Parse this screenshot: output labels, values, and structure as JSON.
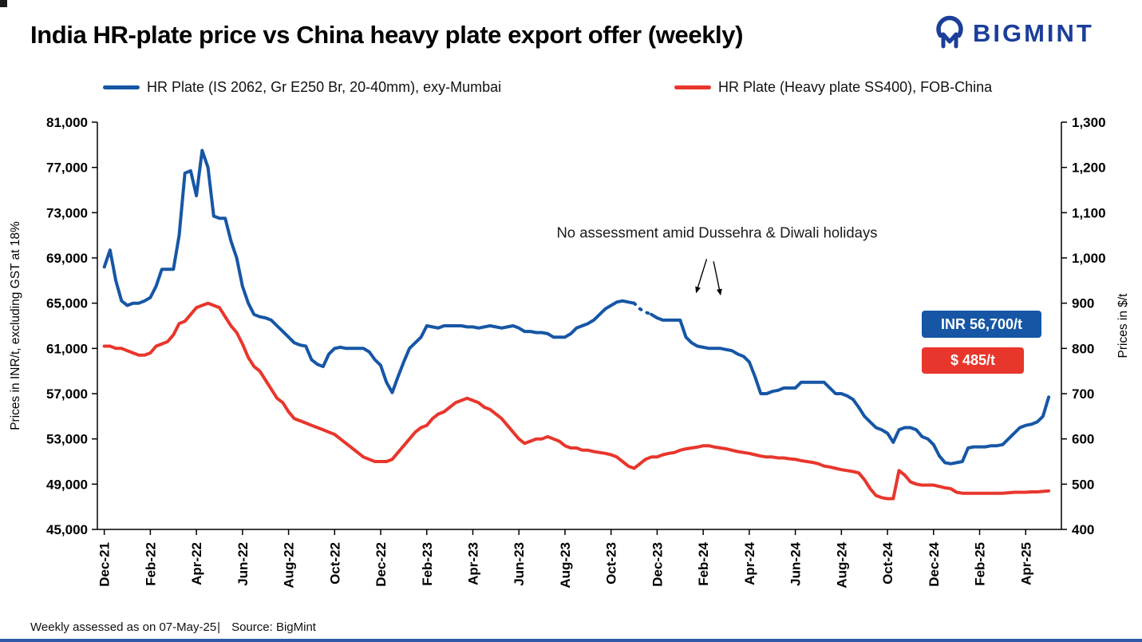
{
  "header": {
    "title": "India HR-plate price vs China heavy plate export offer (weekly)",
    "logo_text": "BIGMINT",
    "logo_color": "#1B3E99"
  },
  "legend": {
    "series1": "HR Plate (IS 2062, Gr E250 Br, 20-40mm), exy-Mumbai",
    "series2": "HR Plate (Heavy plate SS400), FOB-China"
  },
  "badges": {
    "inr": "INR 56,700/t",
    "usd": "$ 485/t"
  },
  "footer": {
    "assessed": "Weekly assessed as on 07-May-25",
    "separator": "|",
    "source": "Source: BigMint"
  },
  "chart_data": {
    "type": "line",
    "title": "India HR-plate price vs China heavy plate export offer (weekly)",
    "x_unit": "months since Dec-2021, weekly points (x_step = 0.25 month)",
    "x_tick_months": [
      0,
      2,
      4,
      6,
      8,
      10,
      12,
      14,
      16,
      18,
      20,
      22,
      24,
      26,
      28,
      30,
      32,
      34,
      36,
      38,
      40
    ],
    "x_tick_labels": [
      "Dec-21",
      "Feb-22",
      "Apr-22",
      "Jun-22",
      "Aug-22",
      "Oct-22",
      "Dec-22",
      "Feb-23",
      "Apr-23",
      "Jun-23",
      "Aug-23",
      "Oct-23",
      "Dec-23",
      "Feb-24",
      "Apr-24",
      "Jun-24",
      "Aug-24",
      "Oct-24",
      "Dec-24",
      "Feb-25",
      "Apr-25"
    ],
    "left_axis": {
      "label": "Prices in INR/t, excluding GST at 18%",
      "min": 45000,
      "max": 81000,
      "tick_step": 4000
    },
    "right_axis": {
      "label": "Prices in $/t",
      "min": 400,
      "max": 1300,
      "tick_step": 100
    },
    "grid": false,
    "legend_position": "top",
    "annotation": {
      "text": "No assessment amid Dussehra & Diwali holidays",
      "x_month": 26.6,
      "y_inr": 70800,
      "arrows": [
        {
          "from_m": 26.15,
          "from_inr": 68900,
          "to_m": 25.7,
          "to_inr": 65950
        },
        {
          "from_m": 26.45,
          "from_inr": 68700,
          "to_m": 26.75,
          "to_inr": 65750
        }
      ]
    },
    "series": [
      {
        "name": "HR Plate (IS 2062, Gr E250 Br, 20-40mm), exy-Mumbai",
        "axis": "left",
        "color": "#1656A5",
        "last_value_label": "INR 56,700/t",
        "x_start": 0,
        "x_step": 0.25,
        "gap_dashed": {
          "from": 23.0,
          "to": 23.75
        },
        "values": [
          68200,
          69700,
          67000,
          65200,
          64800,
          65000,
          65000,
          65200,
          65500,
          66500,
          68000,
          68000,
          68000,
          71000,
          76500,
          76700,
          74500,
          78500,
          77000,
          72700,
          72500,
          72500,
          70500,
          69000,
          66500,
          65000,
          64000,
          63800,
          63700,
          63500,
          63000,
          62500,
          62000,
          61500,
          61300,
          61200,
          60000,
          59600,
          59400,
          60500,
          61000,
          61100,
          61000,
          61000,
          61000,
          61000,
          60700,
          60000,
          59500,
          58000,
          57100,
          58500,
          59800,
          61000,
          61500,
          62000,
          63000,
          62900,
          62800,
          63000,
          63000,
          63000,
          63000,
          62900,
          62900,
          62800,
          62900,
          63000,
          62900,
          62800,
          62900,
          63000,
          62800,
          62500,
          62500,
          62400,
          62400,
          62300,
          62000,
          62000,
          62000,
          62300,
          62800,
          63000,
          63200,
          63500,
          64000,
          64500,
          64800,
          65100,
          65200,
          65100,
          65000,
          64500,
          64200,
          64000,
          63700,
          63500,
          63500,
          63500,
          63500,
          62000,
          61500,
          61200,
          61100,
          61000,
          61000,
          61000,
          60900,
          60800,
          60500,
          60300,
          59800,
          58500,
          57000,
          57000,
          57200,
          57300,
          57500,
          57500,
          57500,
          58000,
          58000,
          58000,
          58000,
          58000,
          57500,
          57000,
          57000,
          56800,
          56500,
          55800,
          55000,
          54500,
          54000,
          53800,
          53500,
          52700,
          53800,
          54000,
          54000,
          53800,
          53200,
          53000,
          52500,
          51500,
          50900,
          50800,
          50900,
          51000,
          52200,
          52300,
          52300,
          52300,
          52400,
          52400,
          52500,
          53000,
          53500,
          54000,
          54200,
          54300,
          54500,
          55000,
          56700
        ]
      },
      {
        "name": "HR Plate (Heavy plate SS400), FOB-China",
        "axis": "right",
        "color": "#E8362C",
        "last_value_label": "$ 485/t",
        "x_start": 0,
        "x_step": 0.25,
        "values": [
          805,
          805,
          800,
          800,
          795,
          790,
          785,
          785,
          790,
          805,
          810,
          815,
          830,
          855,
          860,
          875,
          890,
          895,
          900,
          895,
          890,
          870,
          850,
          835,
          810,
          780,
          760,
          750,
          730,
          710,
          690,
          680,
          660,
          645,
          640,
          635,
          630,
          625,
          620,
          615,
          610,
          600,
          590,
          580,
          570,
          560,
          555,
          550,
          550,
          550,
          555,
          570,
          585,
          600,
          615,
          625,
          630,
          645,
          655,
          660,
          670,
          680,
          685,
          690,
          685,
          680,
          670,
          665,
          655,
          645,
          630,
          615,
          600,
          590,
          595,
          600,
          600,
          605,
          600,
          595,
          585,
          580,
          580,
          575,
          575,
          572,
          570,
          568,
          565,
          560,
          550,
          540,
          535,
          545,
          555,
          560,
          560,
          565,
          568,
          570,
          575,
          578,
          580,
          582,
          585,
          585,
          582,
          580,
          578,
          575,
          572,
          570,
          568,
          565,
          562,
          560,
          560,
          558,
          558,
          556,
          555,
          552,
          550,
          548,
          545,
          540,
          538,
          535,
          532,
          530,
          528,
          525,
          510,
          490,
          475,
          470,
          468,
          468,
          530,
          520,
          505,
          500,
          498,
          498,
          498,
          495,
          492,
          490,
          482,
          480,
          480,
          480,
          480,
          480,
          480,
          480,
          480,
          481,
          482,
          482,
          482,
          483,
          483,
          484,
          485
        ]
      }
    ]
  }
}
